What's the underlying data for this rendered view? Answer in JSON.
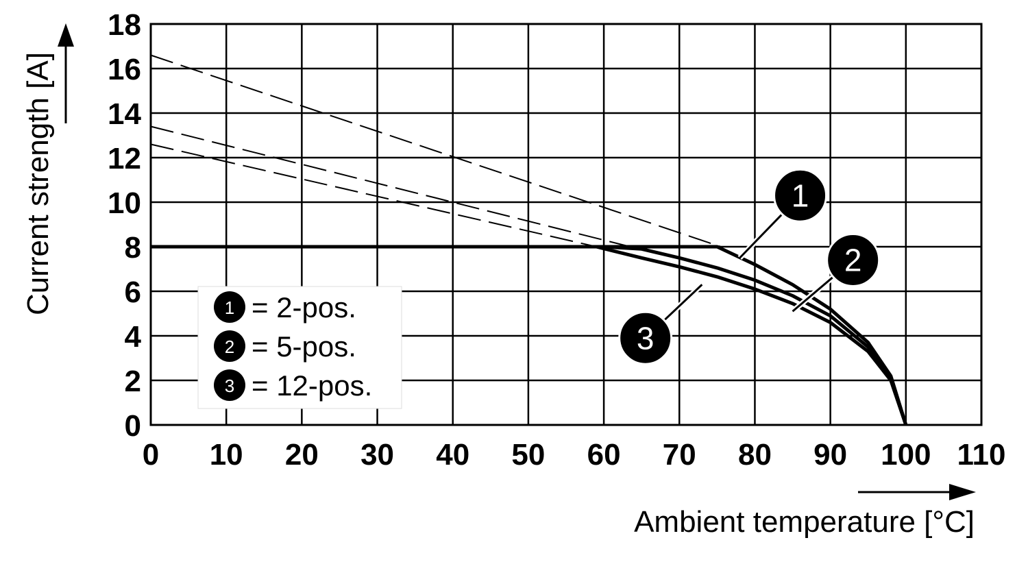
{
  "chart_data": {
    "type": "line",
    "xlabel": "Ambient temperature [°C]",
    "ylabel": "Current strength [A]",
    "xlim": [
      0,
      110
    ],
    "ylim": [
      0,
      18
    ],
    "x_ticks": [
      0,
      10,
      20,
      30,
      40,
      50,
      60,
      70,
      80,
      90,
      100,
      110
    ],
    "y_ticks": [
      0,
      2,
      4,
      6,
      8,
      10,
      12,
      14,
      16,
      18
    ],
    "grid": true,
    "legend": {
      "placement": "bottom-left",
      "entries": [
        {
          "marker": "1",
          "text": "= 2-pos."
        },
        {
          "marker": "2",
          "text": "= 5-pos."
        },
        {
          "marker": "3",
          "text": "= 12-pos."
        }
      ]
    },
    "series": [
      {
        "marker": "1",
        "style": "solid",
        "points": [
          [
            0,
            8
          ],
          [
            60,
            8
          ],
          [
            65,
            8
          ],
          [
            70,
            8
          ],
          [
            75,
            8
          ],
          [
            80,
            7.2
          ],
          [
            85,
            6.3
          ],
          [
            90,
            5.2
          ],
          [
            95,
            3.7
          ],
          [
            98,
            2.2
          ],
          [
            100,
            0
          ]
        ]
      },
      {
        "marker": "2",
        "style": "solid",
        "points": [
          [
            0,
            8
          ],
          [
            60,
            8
          ],
          [
            65,
            7.9
          ],
          [
            70,
            7.5
          ],
          [
            75,
            7.05
          ],
          [
            80,
            6.5
          ],
          [
            85,
            5.8
          ],
          [
            90,
            4.9
          ],
          [
            95,
            3.5
          ],
          [
            98,
            2.1
          ],
          [
            100,
            0
          ]
        ]
      },
      {
        "marker": "3",
        "style": "solid",
        "points": [
          [
            0,
            8
          ],
          [
            59,
            8
          ],
          [
            65,
            7.5
          ],
          [
            70,
            7.1
          ],
          [
            75,
            6.65
          ],
          [
            80,
            6.1
          ],
          [
            85,
            5.45
          ],
          [
            90,
            4.6
          ],
          [
            95,
            3.3
          ],
          [
            98,
            2.0
          ],
          [
            100,
            0
          ]
        ]
      },
      {
        "marker": "1",
        "style": "dashed",
        "points": [
          [
            0,
            16.6
          ],
          [
            75.5,
            8
          ]
        ]
      },
      {
        "marker": "2",
        "style": "dashed",
        "points": [
          [
            0,
            13.4
          ],
          [
            63.5,
            8
          ]
        ]
      },
      {
        "marker": "3",
        "style": "dashed",
        "points": [
          [
            0,
            12.6
          ],
          [
            59,
            8
          ]
        ]
      }
    ],
    "annotations": [
      {
        "marker": "1",
        "label_at": [
          86,
          10.3
        ],
        "points_to": [
          78,
          7.5
        ]
      },
      {
        "marker": "2",
        "label_at": [
          93,
          7.4
        ],
        "points_to": [
          85,
          5.1
        ]
      },
      {
        "marker": "3",
        "label_at": [
          65.5,
          3.9
        ],
        "points_to": [
          73,
          6.3
        ]
      }
    ]
  }
}
